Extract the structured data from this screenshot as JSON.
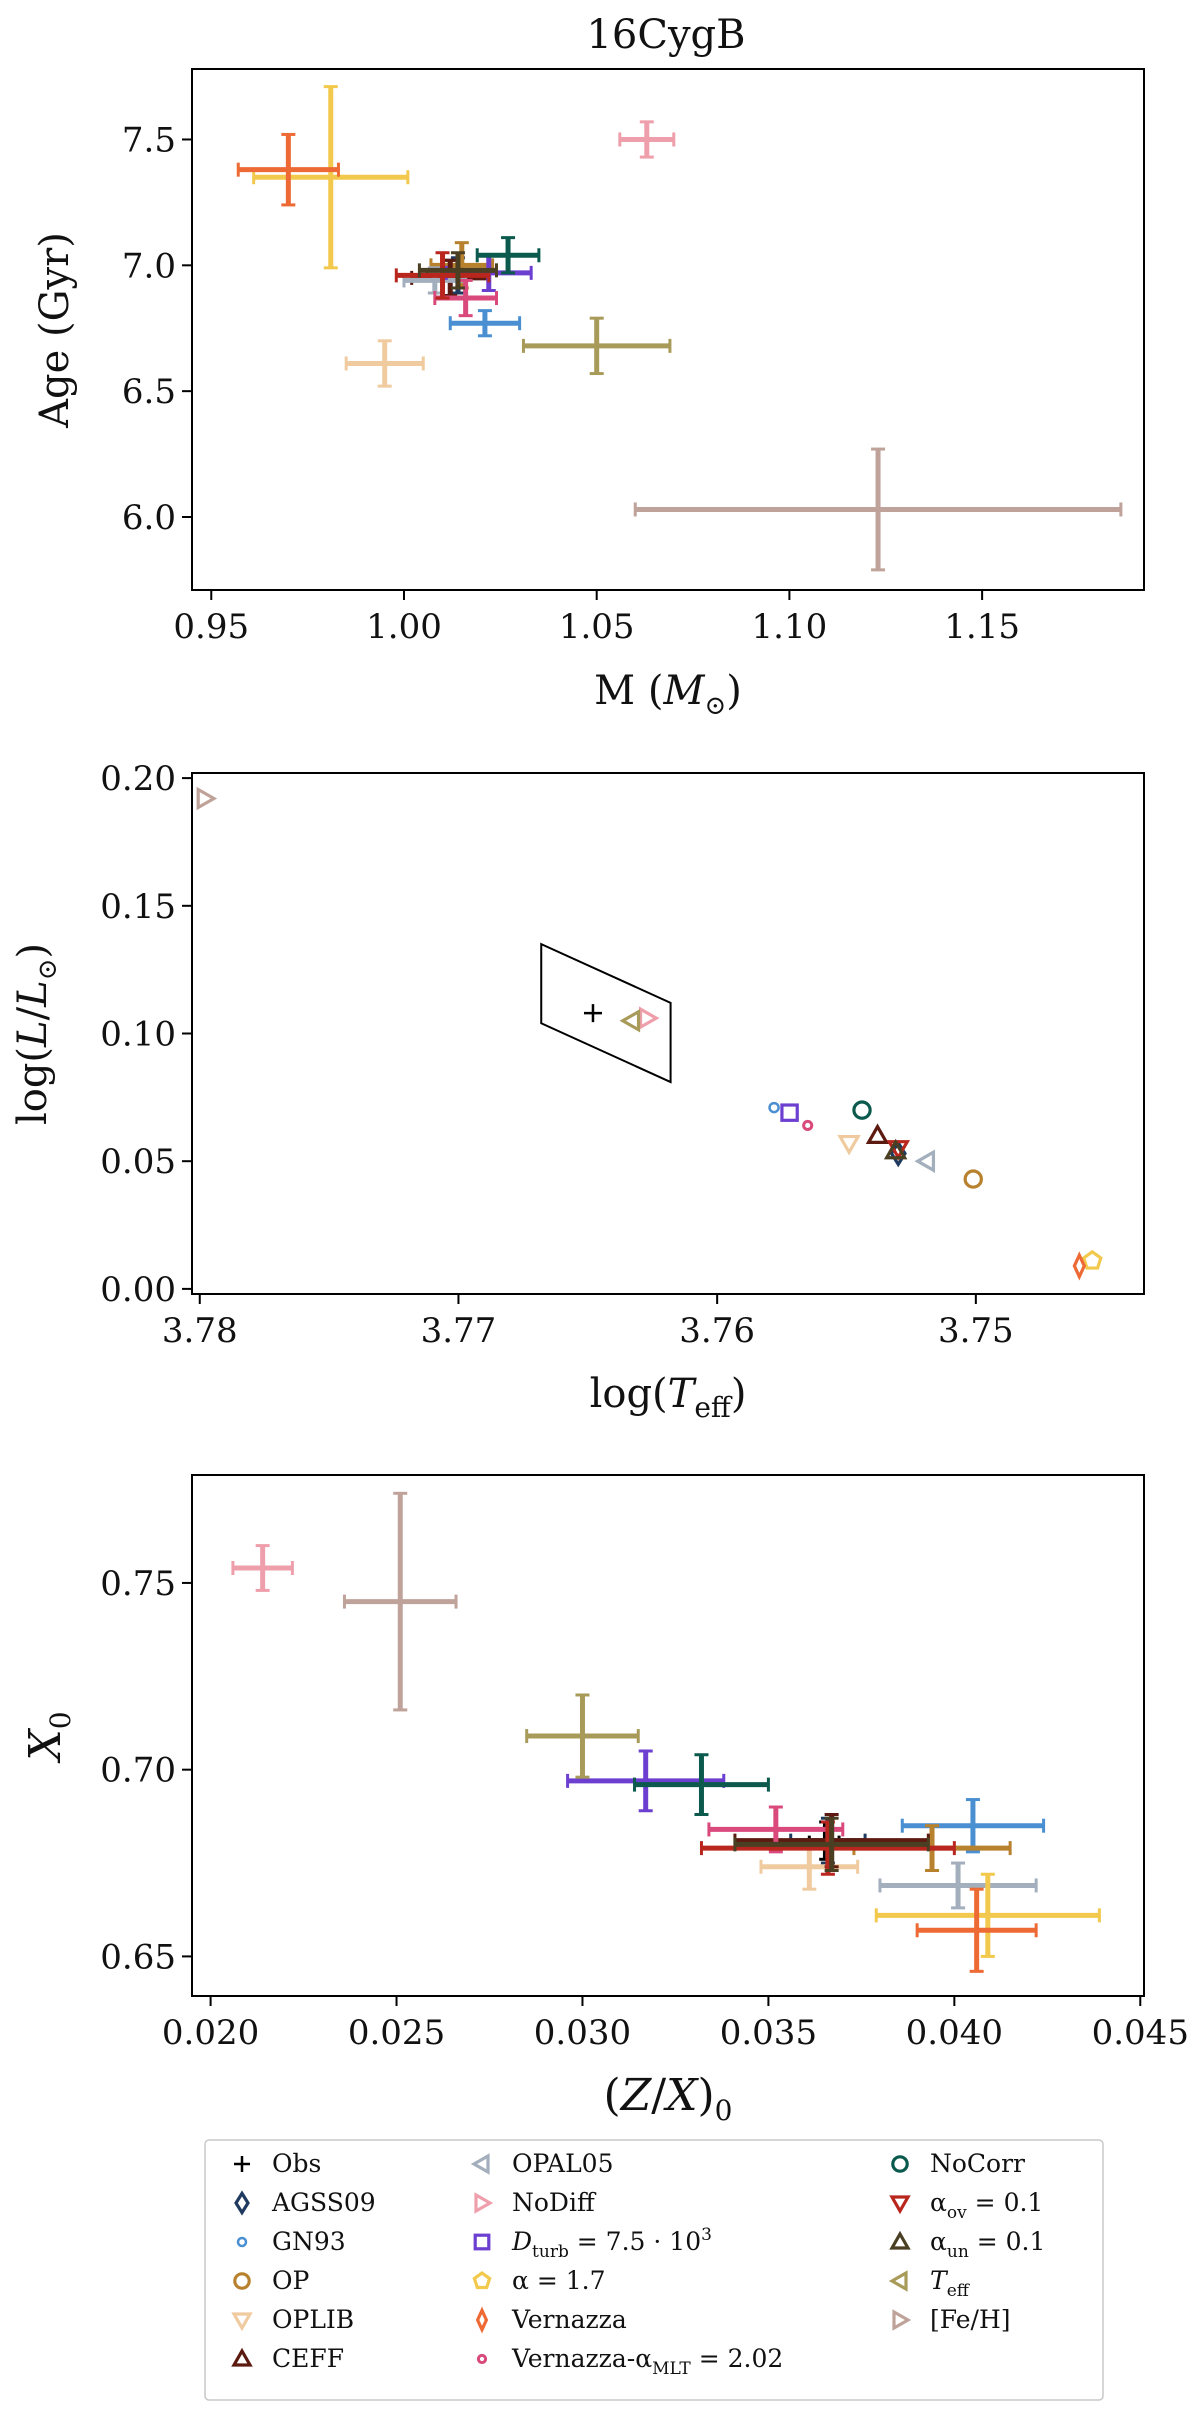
{
  "figure_title": "16CygB",
  "chart_data": [
    {
      "type": "scatter",
      "title": "16CygB",
      "xlabel": "M (M⊙)",
      "ylabel": "Age (Gyr)",
      "xlim": [
        0.945,
        1.192
      ],
      "ylim": [
        5.71,
        7.78
      ],
      "xticks": [
        0.95,
        1.0,
        1.05,
        1.1,
        1.15
      ],
      "xtick_labels": [
        "0.95",
        "1.00",
        "1.05",
        "1.10",
        "1.15"
      ],
      "yticks": [
        6.0,
        6.5,
        7.0,
        7.5
      ],
      "ytick_labels": [
        "6.0",
        "6.5",
        "7.0",
        "7.5"
      ],
      "points": [
        {
          "model": "Obs",
          "x": 1.012,
          "y": 6.95,
          "xerr": 0.004,
          "yerr": 0.07
        },
        {
          "model": "AGSS09",
          "x": 1.014,
          "y": 6.96,
          "xerr": 0.008,
          "yerr": 0.07
        },
        {
          "model": "GN93",
          "x": 1.021,
          "y": 6.77,
          "xerr": 0.009,
          "yerr": 0.05
        },
        {
          "model": "OP",
          "x": 1.015,
          "y": 7.0,
          "xerr": 0.008,
          "yerr": 0.09
        },
        {
          "model": "OPLIB",
          "x": 0.995,
          "y": 6.61,
          "xerr": 0.01,
          "yerr": 0.09
        },
        {
          "model": "CEFF",
          "x": 1.012,
          "y": 6.95,
          "xerr": 0.01,
          "yerr": 0.07
        },
        {
          "model": "OPAL05",
          "x": 1.008,
          "y": 6.94,
          "xerr": 0.008,
          "yerr": 0.05
        },
        {
          "model": "NoDiff",
          "x": 1.063,
          "y": 7.5,
          "xerr": 0.007,
          "yerr": 0.07
        },
        {
          "model": "Dturb",
          "x": 1.022,
          "y": 6.97,
          "xerr": 0.011,
          "yerr": 0.07
        },
        {
          "model": "alpha17",
          "x": 0.981,
          "y": 7.35,
          "xerr": 0.02,
          "yerr": 0.36
        },
        {
          "model": "Vernazza",
          "x": 0.97,
          "y": 7.38,
          "xerr": 0.013,
          "yerr": 0.14
        },
        {
          "model": "VernazzaMLT",
          "x": 1.016,
          "y": 6.87,
          "xerr": 0.008,
          "yerr": 0.07
        },
        {
          "model": "NoCorr",
          "x": 1.027,
          "y": 7.04,
          "xerr": 0.008,
          "yerr": 0.07
        },
        {
          "model": "alphaov",
          "x": 1.01,
          "y": 6.96,
          "xerr": 0.012,
          "yerr": 0.09
        },
        {
          "model": "alphaun",
          "x": 1.014,
          "y": 6.98,
          "xerr": 0.01,
          "yerr": 0.07
        },
        {
          "model": "Teff",
          "x": 1.05,
          "y": 6.68,
          "xerr": 0.019,
          "yerr": 0.11
        },
        {
          "model": "FeH",
          "x": 1.123,
          "y": 6.03,
          "xerr": 0.063,
          "yerr": 0.24
        }
      ]
    },
    {
      "type": "scatter",
      "xlabel": "log(Teff)",
      "ylabel": "log(L/L⊙)",
      "xlim": [
        3.7803,
        3.7435
      ],
      "ylim": [
        -0.002,
        0.202
      ],
      "xticks": [
        3.78,
        3.77,
        3.76,
        3.75
      ],
      "xtick_labels": [
        "3.78",
        "3.77",
        "3.76",
        "3.75"
      ],
      "yticks": [
        0.0,
        0.05,
        0.1,
        0.15,
        0.2
      ],
      "ytick_labels": [
        "0.00",
        "0.05",
        "0.10",
        "0.15",
        "0.20"
      ],
      "error_box": [
        [
          3.7668,
          0.135
        ],
        [
          3.7618,
          0.112
        ],
        [
          3.7618,
          0.081
        ],
        [
          3.7668,
          0.104
        ]
      ],
      "points": [
        {
          "model": "Obs",
          "x": 3.7648,
          "y": 0.108
        },
        {
          "model": "AGSS09",
          "x": 3.753,
          "y": 0.053
        },
        {
          "model": "GN93",
          "x": 3.7578,
          "y": 0.071
        },
        {
          "model": "OP",
          "x": 3.7501,
          "y": 0.043
        },
        {
          "model": "OPLIB",
          "x": 3.7549,
          "y": 0.057
        },
        {
          "model": "CEFF",
          "x": 3.7538,
          "y": 0.06
        },
        {
          "model": "OPAL05",
          "x": 3.7519,
          "y": 0.05
        },
        {
          "model": "NoDiff",
          "x": 3.7627,
          "y": 0.106
        },
        {
          "model": "Dturb",
          "x": 3.7572,
          "y": 0.069
        },
        {
          "model": "alpha17",
          "x": 3.7455,
          "y": 0.011
        },
        {
          "model": "Vernazza",
          "x": 3.746,
          "y": 0.009
        },
        {
          "model": "VernazzaMLT",
          "x": 3.7565,
          "y": 0.064
        },
        {
          "model": "NoCorr",
          "x": 3.7544,
          "y": 0.07
        },
        {
          "model": "alphaov",
          "x": 3.753,
          "y": 0.055
        },
        {
          "model": "alphaun",
          "x": 3.7531,
          "y": 0.054
        },
        {
          "model": "Teff",
          "x": 3.7633,
          "y": 0.105
        },
        {
          "model": "FeH",
          "x": 3.7798,
          "y": 0.192
        }
      ]
    },
    {
      "type": "scatter",
      "xlabel": "(Z/X)0",
      "ylabel": "X0",
      "xlim": [
        0.0195,
        0.0451
      ],
      "ylim": [
        0.6394,
        0.7789
      ],
      "xticks": [
        0.02,
        0.025,
        0.03,
        0.035,
        0.04,
        0.045
      ],
      "xtick_labels": [
        "0.020",
        "0.025",
        "0.030",
        "0.035",
        "0.040",
        "0.045"
      ],
      "yticks": [
        0.65,
        0.7,
        0.75
      ],
      "ytick_labels": [
        "0.65",
        "0.70",
        "0.75"
      ],
      "points": [
        {
          "model": "Obs",
          "x": 0.0365,
          "y": 0.681,
          "xerr": 0.0004,
          "yerr": 0.005
        },
        {
          "model": "AGSS09",
          "x": 0.0366,
          "y": 0.681,
          "xerr": 0.001,
          "yerr": 0.006
        },
        {
          "model": "GN93",
          "x": 0.0405,
          "y": 0.685,
          "xerr": 0.0019,
          "yerr": 0.007
        },
        {
          "model": "OP",
          "x": 0.0394,
          "y": 0.679,
          "xerr": 0.0021,
          "yerr": 0.006
        },
        {
          "model": "OPLIB",
          "x": 0.0361,
          "y": 0.674,
          "xerr": 0.0013,
          "yerr": 0.006
        },
        {
          "model": "CEFF",
          "x": 0.0367,
          "y": 0.681,
          "xerr": 0.0026,
          "yerr": 0.007
        },
        {
          "model": "OPAL05",
          "x": 0.0401,
          "y": 0.669,
          "xerr": 0.0021,
          "yerr": 0.006
        },
        {
          "model": "NoDiff",
          "x": 0.0214,
          "y": 0.754,
          "xerr": 0.0008,
          "yerr": 0.006
        },
        {
          "model": "Dturb",
          "x": 0.0317,
          "y": 0.697,
          "xerr": 0.0021,
          "yerr": 0.008
        },
        {
          "model": "alpha17",
          "x": 0.0409,
          "y": 0.661,
          "xerr": 0.003,
          "yerr": 0.011
        },
        {
          "model": "Vernazza",
          "x": 0.0406,
          "y": 0.657,
          "xerr": 0.0016,
          "yerr": 0.011
        },
        {
          "model": "VernazzaMLT",
          "x": 0.0352,
          "y": 0.684,
          "xerr": 0.0018,
          "yerr": 0.006
        },
        {
          "model": "NoCorr",
          "x": 0.0332,
          "y": 0.696,
          "xerr": 0.0018,
          "yerr": 0.008
        },
        {
          "model": "alphaov",
          "x": 0.0366,
          "y": 0.679,
          "xerr": 0.0034,
          "yerr": 0.007
        },
        {
          "model": "alphaun",
          "x": 0.0367,
          "y": 0.68,
          "xerr": 0.0026,
          "yerr": 0.007
        },
        {
          "model": "Teff",
          "x": 0.03,
          "y": 0.709,
          "xerr": 0.0015,
          "yerr": 0.011
        },
        {
          "model": "FeH",
          "x": 0.0251,
          "y": 0.745,
          "xerr": 0.0015,
          "yerr": 0.029
        }
      ]
    }
  ],
  "legend": [
    {
      "id": "Obs",
      "label": "Obs",
      "color": "#000000",
      "marker": "plus"
    },
    {
      "id": "AGSS09",
      "label": "AGSS09",
      "color": "#1f3a5f",
      "marker": "diamond"
    },
    {
      "id": "GN93",
      "label": "GN93",
      "color": "#4a8fd1",
      "marker": "smallcircle"
    },
    {
      "id": "OP",
      "label": "OP",
      "color": "#b8812e",
      "marker": "circle"
    },
    {
      "id": "OPLIB",
      "label": "OPLIB",
      "color": "#f0cba0",
      "marker": "tri-down"
    },
    {
      "id": "CEFF",
      "label": "CEFF",
      "color": "#5c1a10",
      "marker": "tri-up"
    },
    {
      "id": "OPAL05",
      "label": "OPAL05",
      "color": "#a3afbd",
      "marker": "tri-left"
    },
    {
      "id": "NoDiff",
      "label": "NoDiff",
      "color": "#ee9fab",
      "marker": "tri-right"
    },
    {
      "id": "Dturb",
      "label_pre": "D",
      "label_sub": "turb",
      "label_post": " = 7.5 · 10",
      "label_sup": "3",
      "color": "#6c3fd0",
      "marker": "square"
    },
    {
      "id": "alpha17",
      "label": "α = 1.7",
      "color": "#f2c94c",
      "marker": "pentagon"
    },
    {
      "id": "Vernazza",
      "label": "Vernazza",
      "color": "#ee6a35",
      "marker": "thindiamond"
    },
    {
      "id": "VernazzaMLT",
      "label_pre": "Vernazza-α",
      "label_sub": "MLT",
      "label_post": " = 2.02",
      "color": "#d9497b",
      "marker": "dot"
    },
    {
      "id": "NoCorr",
      "label": "NoCorr",
      "color": "#0c5a4d",
      "marker": "circle"
    },
    {
      "id": "alphaov",
      "label_pre": "α",
      "label_sub": "ov",
      "label_post": " = 0.1",
      "color": "#b8261d",
      "marker": "tri-down"
    },
    {
      "id": "alphaun",
      "label_pre": "α",
      "label_sub": "un",
      "label_post": " = 0.1",
      "color": "#4a3f22",
      "marker": "tri-up"
    },
    {
      "id": "Teff",
      "label_pre": "T",
      "label_sub": "eff",
      "label_post": "",
      "color": "#a89b5a",
      "marker": "tri-left"
    },
    {
      "id": "FeH",
      "label": "[Fe/H]",
      "color": "#bfa39a",
      "marker": "tri-right"
    }
  ]
}
